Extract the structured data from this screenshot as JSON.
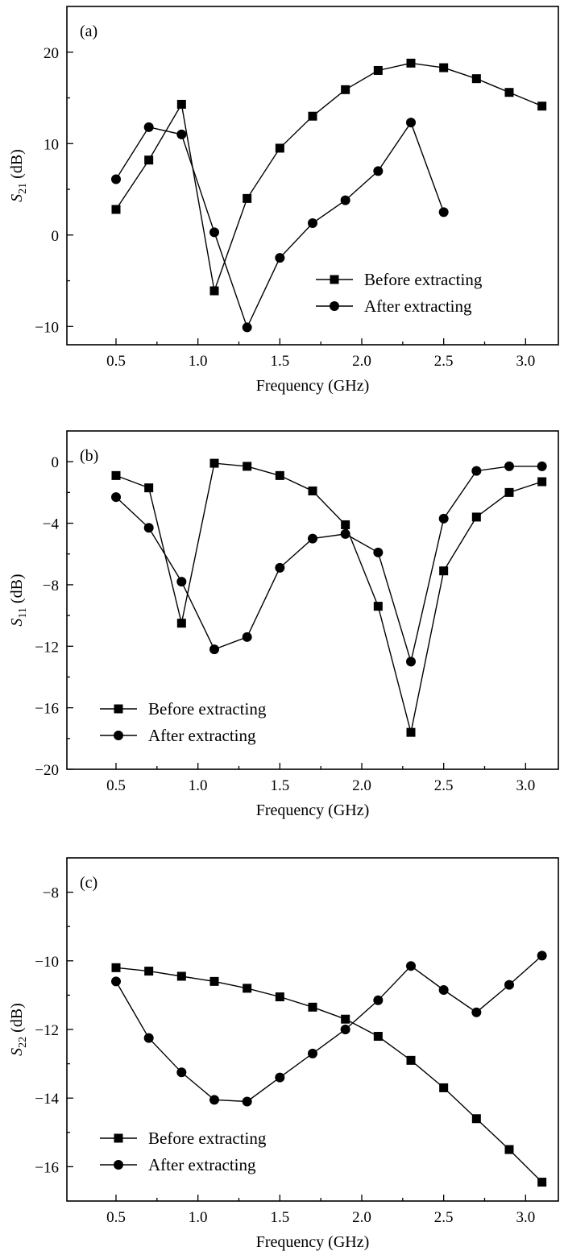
{
  "chart_data": [
    {
      "type": "line",
      "panel_label": "(a)",
      "xlabel": "Frequency (GHz)",
      "ylabel_main": "S",
      "ylabel_sub": "21",
      "ylabel_unit": " (dB)",
      "xlim": [
        0.2,
        3.2
      ],
      "ylim": [
        -12,
        25
      ],
      "xticks": [
        0.5,
        1.0,
        1.5,
        2.0,
        2.5,
        3.0
      ],
      "xtick_labels": [
        "0.5",
        "1.0",
        "1.5",
        "2.0",
        "2.5",
        "3.0"
      ],
      "yticks": [
        -10,
        0,
        10,
        20
      ],
      "ytick_labels": [
        "−10",
        "0",
        "10",
        "20"
      ],
      "legend_position": "lower-right",
      "grid": false,
      "series": [
        {
          "name": "Before extracting",
          "marker": "square",
          "x": [
            0.5,
            0.7,
            0.9,
            1.1,
            1.3,
            1.5,
            1.7,
            1.9,
            2.1,
            2.3,
            2.5,
            2.7,
            2.9,
            3.1
          ],
          "y": [
            2.8,
            8.2,
            14.3,
            -6.1,
            4.0,
            9.5,
            13.0,
            15.9,
            18.0,
            18.8,
            18.3,
            17.1,
            15.6,
            14.1
          ]
        },
        {
          "name": "After extracting",
          "marker": "circle",
          "x": [
            0.5,
            0.7,
            0.9,
            1.1,
            1.3,
            1.5,
            1.7,
            1.9,
            2.1,
            2.3,
            2.5
          ],
          "y": [
            6.1,
            11.8,
            11.0,
            0.3,
            -10.1,
            -2.5,
            1.3,
            3.8,
            7.0,
            12.3,
            2.5
          ]
        }
      ]
    },
    {
      "type": "line",
      "panel_label": "(b)",
      "xlabel": "Frequency (GHz)",
      "ylabel_main": "S",
      "ylabel_sub": "11",
      "ylabel_unit": " (dB)",
      "xlim": [
        0.2,
        3.2
      ],
      "ylim": [
        -20,
        2
      ],
      "xticks": [
        0.5,
        1.0,
        1.5,
        2.0,
        2.5,
        3.0
      ],
      "xtick_labels": [
        "0.5",
        "1.0",
        "1.5",
        "2.0",
        "2.5",
        "3.0"
      ],
      "yticks": [
        -20,
        -16,
        -12,
        -8,
        -4,
        0
      ],
      "ytick_labels": [
        "−20",
        "−16",
        "−12",
        "−8",
        "−4",
        "0"
      ],
      "legend_position": "lower-left",
      "grid": false,
      "series": [
        {
          "name": "Before extracting",
          "marker": "square",
          "x": [
            0.5,
            0.7,
            0.9,
            1.1,
            1.3,
            1.5,
            1.7,
            1.9,
            2.1,
            2.3,
            2.5,
            2.7,
            2.9,
            3.1
          ],
          "y": [
            -0.9,
            -1.7,
            -10.5,
            -0.1,
            -0.3,
            -0.9,
            -1.9,
            -4.1,
            -9.4,
            -17.6,
            -7.1,
            -3.6,
            -2.0,
            -1.3
          ]
        },
        {
          "name": "After extracting",
          "marker": "circle",
          "x": [
            0.5,
            0.7,
            0.9,
            1.1,
            1.3,
            1.5,
            1.7,
            1.9,
            2.1,
            2.3,
            2.5,
            2.7,
            2.9,
            3.1
          ],
          "y": [
            -2.3,
            -4.3,
            -7.8,
            -12.2,
            -11.4,
            -6.9,
            -5.0,
            -4.7,
            -5.9,
            -13.0,
            -3.7,
            -0.6,
            -0.3,
            -0.3
          ]
        }
      ]
    },
    {
      "type": "line",
      "panel_label": "(c)",
      "xlabel": "Frequency (GHz)",
      "ylabel_main": "S",
      "ylabel_sub": "22",
      "ylabel_unit": " (dB)",
      "xlim": [
        0.2,
        3.2
      ],
      "ylim": [
        -17,
        -7
      ],
      "xticks": [
        0.5,
        1.0,
        1.5,
        2.0,
        2.5,
        3.0
      ],
      "xtick_labels": [
        "0.5",
        "1.0",
        "1.5",
        "2.0",
        "2.5",
        "3.0"
      ],
      "yticks": [
        -16,
        -14,
        -12,
        -10,
        -8
      ],
      "ytick_labels": [
        "−16",
        "−14",
        "−12",
        "−10",
        "−8"
      ],
      "legend_position": "lower-left",
      "grid": false,
      "series": [
        {
          "name": "Before extracting",
          "marker": "square",
          "x": [
            0.5,
            0.7,
            0.9,
            1.1,
            1.3,
            1.5,
            1.7,
            1.9,
            2.1,
            2.3,
            2.5,
            2.7,
            2.9,
            3.1
          ],
          "y": [
            -10.2,
            -10.3,
            -10.45,
            -10.6,
            -10.8,
            -11.05,
            -11.35,
            -11.7,
            -12.2,
            -12.9,
            -13.7,
            -14.6,
            -15.5,
            -16.45
          ]
        },
        {
          "name": "After extracting",
          "marker": "circle",
          "x": [
            0.5,
            0.7,
            0.9,
            1.1,
            1.3,
            1.5,
            1.7,
            1.9,
            2.1,
            2.3,
            2.5,
            2.7,
            2.9,
            3.1
          ],
          "y": [
            -10.6,
            -12.25,
            -13.25,
            -14.05,
            -14.1,
            -13.4,
            -12.7,
            -12.0,
            -11.15,
            -10.15,
            -10.85,
            -11.5,
            -10.7,
            -9.85
          ]
        }
      ]
    }
  ]
}
